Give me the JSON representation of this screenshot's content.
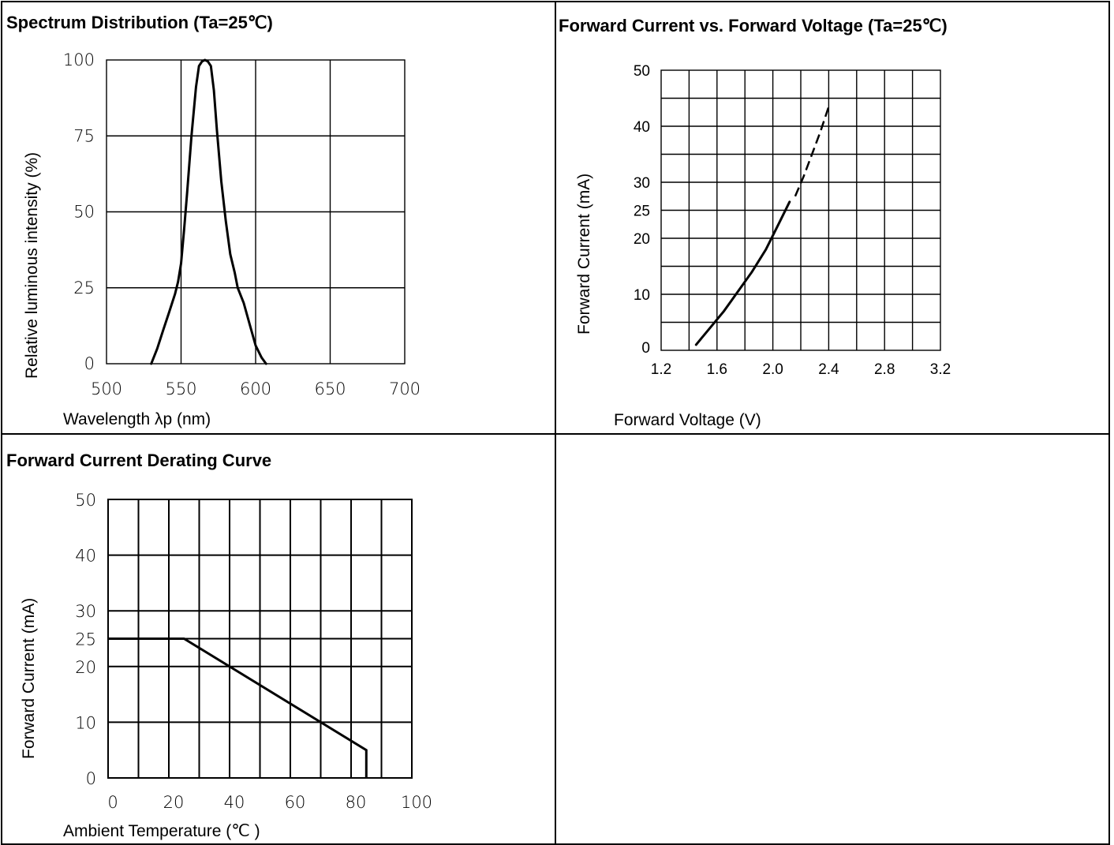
{
  "panels": {
    "spectrum": {
      "title": "Spectrum Distribution (Ta=25℃)"
    },
    "iv": {
      "title": "Forward Current vs. Forward Voltage (Ta=25℃)"
    },
    "derating": {
      "title": "Forward Current Derating Curve"
    }
  },
  "chart_data": [
    {
      "type": "line",
      "title": "Spectrum Distribution (Ta=25℃)",
      "xlabel": "Wavelength λp (nm)",
      "ylabel": "Relative luminous intensity (%)",
      "xlim": [
        500,
        700
      ],
      "ylim": [
        0,
        100
      ],
      "xticks": [
        "500",
        "550",
        "600",
        "650",
        "700"
      ],
      "yticks": [
        "0",
        "25",
        "50",
        "75",
        "100"
      ],
      "grid": true,
      "series": [
        {
          "x": [
            530,
            534,
            538,
            542,
            546,
            548,
            550,
            552,
            554,
            557,
            560,
            562,
            564,
            566,
            568,
            570,
            572,
            574,
            577,
            580,
            583,
            586,
            588,
            592,
            596,
            600,
            604,
            607
          ],
          "y": [
            0,
            5,
            11,
            17,
            23,
            27,
            33,
            44,
            56,
            75,
            91,
            98,
            99.5,
            100,
            99.5,
            98,
            90,
            77,
            60,
            47,
            36,
            30,
            25,
            20,
            13,
            6,
            2,
            0
          ],
          "color": "#000000"
        }
      ]
    },
    {
      "type": "line",
      "title": "Forward Current vs. Forward Voltage (Ta=25℃)",
      "xlabel": "Forward Voltage (V)",
      "ylabel": "Forward Current (mA)",
      "xlim": [
        1.2,
        3.2
      ],
      "ylim": [
        0,
        50
      ],
      "xticks": [
        "1.2",
        "1.6",
        "2.0",
        "2.4",
        "2.8",
        "3.2"
      ],
      "yticks": [
        "0",
        "10",
        "20",
        "25",
        "30",
        "40",
        "50"
      ],
      "grid": true,
      "series": [
        {
          "x": [
            1.45,
            1.55,
            1.65,
            1.75,
            1.85,
            1.95,
            2.05,
            2.12
          ],
          "y": [
            1,
            4,
            7,
            10.5,
            14,
            18,
            23,
            26.5
          ],
          "style": "solid",
          "color": "#000000"
        },
        {
          "x": [
            2.16,
            2.22,
            2.28,
            2.34,
            2.4
          ],
          "y": [
            27.5,
            31,
            35,
            39,
            43.5
          ],
          "style": "dashed",
          "color": "#000000"
        }
      ]
    },
    {
      "type": "line",
      "title": "Forward Current Derating Curve",
      "xlabel": "Ambient Temperature (℃ )",
      "ylabel": "Forward Current (mA)",
      "xlim": [
        0,
        100
      ],
      "ylim": [
        0,
        50
      ],
      "xticks": [
        "0",
        "20",
        "40",
        "60",
        "80",
        "100"
      ],
      "yticks": [
        "0",
        "10",
        "20",
        "25",
        "30",
        "40",
        "50"
      ],
      "grid": true,
      "series": [
        {
          "x": [
            0,
            25,
            85,
            85
          ],
          "y": [
            25,
            25,
            5,
            0
          ],
          "color": "#000000"
        }
      ]
    }
  ]
}
